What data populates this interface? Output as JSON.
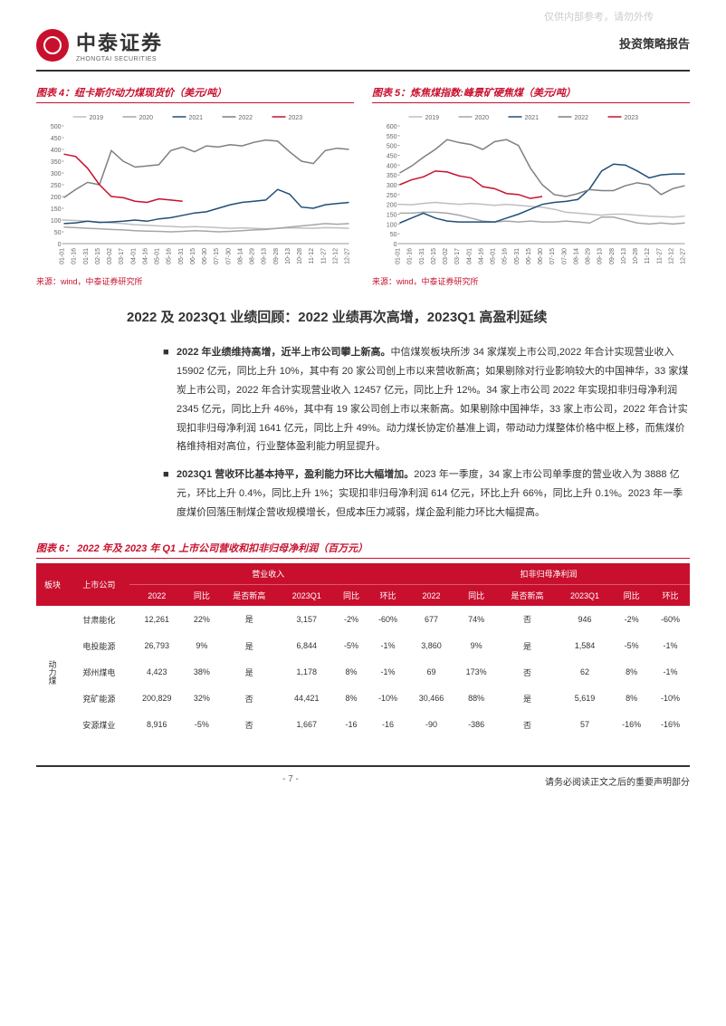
{
  "watermark": "仅供内部参考，请勿外传",
  "company_cn": "中泰证券",
  "company_en": "ZHONGTAI SECURITIES",
  "report_type": "投资策略报告",
  "chart4": {
    "title": "图表 4：纽卡斯尔动力煤现货价（美元/吨）",
    "type": "line",
    "legend": [
      "2019",
      "2020",
      "2021",
      "2022",
      "2023"
    ],
    "colors": [
      "#bfbfbf",
      "#a6a6a6",
      "#1f4e79",
      "#7f7f7f",
      "#c8102e"
    ],
    "ylim": [
      0,
      500
    ],
    "ytick_step": 50,
    "x_labels": [
      "01-01",
      "01-16",
      "01-31",
      "02-15",
      "03-02",
      "03-17",
      "04-01",
      "04-16",
      "05-01",
      "05-16",
      "05-31",
      "06-15",
      "06-30",
      "07-15",
      "07-30",
      "08-14",
      "08-29",
      "09-13",
      "09-28",
      "10-13",
      "10-28",
      "11-12",
      "11-27",
      "12-12",
      "12-27"
    ],
    "series": {
      "2019": [
        100,
        98,
        95,
        92,
        88,
        85,
        80,
        78,
        75,
        73,
        70,
        72,
        70,
        68,
        65,
        67,
        65,
        63,
        65,
        67,
        66,
        65,
        68,
        67,
        65
      ],
      "2020": [
        70,
        68,
        65,
        63,
        60,
        58,
        55,
        53,
        52,
        50,
        52,
        55,
        53,
        50,
        52,
        55,
        58,
        60,
        65,
        70,
        75,
        80,
        85,
        82,
        85
      ],
      "2021": [
        85,
        88,
        95,
        90,
        92,
        95,
        100,
        95,
        105,
        110,
        120,
        130,
        135,
        150,
        165,
        175,
        180,
        185,
        230,
        210,
        155,
        150,
        165,
        170,
        175
      ],
      "2022": [
        195,
        230,
        260,
        250,
        395,
        350,
        325,
        330,
        335,
        395,
        410,
        390,
        415,
        410,
        420,
        415,
        430,
        440,
        435,
        390,
        350,
        340,
        395,
        405,
        400
      ],
      "2023": [
        380,
        370,
        320,
        250,
        200,
        195,
        180,
        175,
        190,
        185,
        180
      ]
    },
    "source": "来源：wind，中泰证券研究所"
  },
  "chart5": {
    "title": "图表 5：炼焦煤指数:峰景矿硬焦煤（美元/吨）",
    "type": "line",
    "legend": [
      "2019",
      "2020",
      "2021",
      "2022",
      "2023"
    ],
    "colors": [
      "#bfbfbf",
      "#a6a6a6",
      "#1f4e79",
      "#7f7f7f",
      "#c8102e"
    ],
    "ylim": [
      0,
      600
    ],
    "ytick_step": 50,
    "x_labels": [
      "01-01",
      "01-16",
      "01-31",
      "02-15",
      "03-02",
      "03-17",
      "04-01",
      "04-16",
      "05-01",
      "05-16",
      "05-31",
      "06-15",
      "06-30",
      "07-15",
      "07-30",
      "08-14",
      "08-29",
      "09-13",
      "09-28",
      "10-13",
      "10-28",
      "11-12",
      "11-27",
      "12-12",
      "12-27"
    ],
    "series": {
      "2019": [
        200,
        198,
        205,
        210,
        205,
        200,
        205,
        200,
        195,
        200,
        195,
        190,
        185,
        175,
        160,
        155,
        150,
        145,
        150,
        150,
        145,
        140,
        138,
        135,
        140
      ],
      "2020": [
        155,
        155,
        160,
        160,
        155,
        145,
        130,
        115,
        110,
        115,
        110,
        115,
        110,
        110,
        115,
        110,
        105,
        135,
        135,
        120,
        105,
        100,
        105,
        100,
        105
      ],
      "2021": [
        105,
        130,
        155,
        130,
        115,
        110,
        110,
        110,
        110,
        130,
        150,
        175,
        200,
        210,
        215,
        225,
        280,
        370,
        405,
        400,
        370,
        335,
        350,
        355,
        355
      ],
      "2022": [
        360,
        395,
        440,
        480,
        530,
        515,
        505,
        480,
        520,
        530,
        500,
        385,
        300,
        250,
        240,
        255,
        275,
        270,
        270,
        295,
        310,
        300,
        250,
        280,
        295
      ],
      "2023": [
        300,
        325,
        340,
        370,
        365,
        345,
        335,
        290,
        280,
        255,
        250,
        230,
        240
      ]
    },
    "source": "来源：wind，中泰证券研究所"
  },
  "section_title": "2022 及 2023Q1 业绩回顾：2022 业绩再次高增，2023Q1 高盈利延续",
  "para1_bold": "2022 年业绩维持高增，近半上市公司攀上新高。",
  "para1": "中信煤炭板块所涉 34 家煤炭上市公司,2022 年合计实现营业收入 15902 亿元，同比上升 10%，其中有 20 家公司创上市以来营收新高；如果剔除对行业影响较大的中国神华，33 家煤炭上市公司，2022 年合计实现营业收入 12457 亿元，同比上升 12%。34 家上市公司 2022 年实现扣非归母净利润 2345 亿元，同比上升 46%，其中有 19 家公司创上市以来新高。如果剔除中国神华，33 家上市公司，2022 年合计实现扣非归母净利润 1641 亿元，同比上升 49%。动力煤长协定价基准上调，带动动力煤整体价格中枢上移，而焦煤价格维持相对高位，行业整体盈利能力明显提升。",
  "para2_bold": "2023Q1 营收环比基本持平，盈利能力环比大幅增加。",
  "para2": "2023 年一季度，34 家上市公司单季度的营业收入为 3888 亿元，环比上升 0.4%，同比上升 1%；实现扣非归母净利润 614 亿元，环比上升 66%，同比上升 0.1%。2023 年一季度煤价回落压制煤企营收规模增长，但成本压力减弱，煤企盈利能力环比大幅提高。",
  "table_title": "图表 6： 2022 年及 2023 年 Q1 上市公司营收和扣非归母净利润（百万元）",
  "table": {
    "header_group1": [
      "板块",
      "上市公司",
      "营业收入",
      "扣非归母净利润"
    ],
    "header_group2": [
      "2022",
      "同比",
      "是否新高",
      "2023Q1",
      "同比",
      "环比",
      "2022",
      "同比",
      "是否新高",
      "2023Q1",
      "同比",
      "环比"
    ],
    "category": "动力煤",
    "rows": [
      [
        "甘肃能化",
        "12,261",
        "22%",
        "是",
        "3,157",
        "-2%",
        "-60%",
        "677",
        "74%",
        "否",
        "946",
        "-2%",
        "-60%"
      ],
      [
        "电投能源",
        "26,793",
        "9%",
        "是",
        "6,844",
        "-5%",
        "-1%",
        "3,860",
        "9%",
        "是",
        "1,584",
        "-5%",
        "-1%"
      ],
      [
        "郑州煤电",
        "4,423",
        "38%",
        "是",
        "1,178",
        "8%",
        "-1%",
        "69",
        "173%",
        "否",
        "62",
        "8%",
        "-1%"
      ],
      [
        "兖矿能源",
        "200,829",
        "32%",
        "否",
        "44,421",
        "8%",
        "-10%",
        "30,466",
        "88%",
        "是",
        "5,619",
        "8%",
        "-10%"
      ],
      [
        "安源煤业",
        "8,916",
        "-5%",
        "否",
        "1,667",
        "-16",
        "-16",
        "-90",
        "-386",
        "否",
        "57",
        "-16%",
        "-16%"
      ]
    ]
  },
  "page_num": "- 7 -",
  "footer_right": "请务必阅读正文之后的重要声明部分"
}
